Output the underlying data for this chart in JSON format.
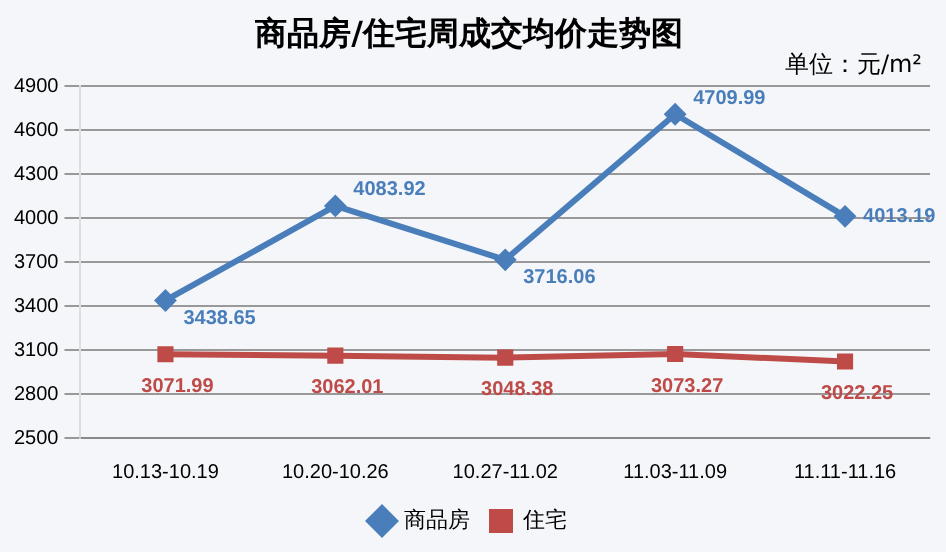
{
  "chart_data": {
    "type": "line",
    "title": "商品房/住宅周成交均价走势图",
    "annotations": [
      "单位：元/m²"
    ],
    "categories": [
      "10.13-10.19",
      "10.20-10.26",
      "10.27-11.02",
      "11.03-11.09",
      "11.11-11.16"
    ],
    "series": [
      {
        "name": "商品房",
        "color": "#4a7ebb",
        "marker": "diamond",
        "values": [
          3438.65,
          4083.92,
          3716.06,
          4709.99,
          4013.19
        ]
      },
      {
        "name": "住宅",
        "color": "#be4b48",
        "marker": "square",
        "values": [
          3071.99,
          3062.01,
          3048.38,
          3073.27,
          3022.25
        ]
      }
    ],
    "ylim": [
      2500,
      4900
    ],
    "yticks": [
      2500,
      2800,
      3100,
      3400,
      3700,
      4000,
      4300,
      4600,
      4900
    ],
    "grid": "y",
    "legend": "bottom",
    "data_labels": true,
    "line_style": "solid"
  }
}
